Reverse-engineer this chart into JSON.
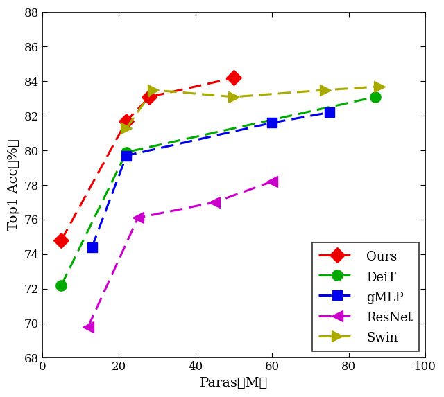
{
  "xlabel": "Paras（M）",
  "ylabel": "Top1 Acc（%）",
  "xlim": [
    0,
    100
  ],
  "ylim": [
    68,
    88
  ],
  "xticks": [
    0,
    20,
    40,
    60,
    80,
    100
  ],
  "yticks": [
    68,
    70,
    72,
    74,
    76,
    78,
    80,
    82,
    84,
    86,
    88
  ],
  "series": [
    {
      "label": "Ours",
      "x": [
        5,
        22,
        28,
        50
      ],
      "y": [
        74.8,
        81.7,
        83.1,
        84.2
      ],
      "color": "#EE0000",
      "linestyle": "--",
      "marker": "D",
      "markersize": 11,
      "linewidth": 2.2
    },
    {
      "label": "DeiT",
      "x": [
        5,
        22,
        87
      ],
      "y": [
        72.2,
        79.9,
        83.1
      ],
      "color": "#00AA00",
      "linestyle": "--",
      "marker": "o",
      "markersize": 11,
      "linewidth": 2.2
    },
    {
      "label": "gMLP",
      "x": [
        13,
        22,
        60,
        75
      ],
      "y": [
        74.4,
        79.7,
        81.6,
        82.2
      ],
      "color": "#0000EE",
      "linestyle": "--",
      "marker": "s",
      "markersize": 10,
      "linewidth": 2.2
    },
    {
      "label": "ResNet",
      "x": [
        12,
        25,
        45,
        60
      ],
      "y": [
        69.8,
        76.1,
        77.0,
        78.2
      ],
      "color": "#CC00CC",
      "linestyle": "--",
      "marker": "<",
      "markersize": 12,
      "linewidth": 2.2
    },
    {
      "label": "Swin",
      "x": [
        22,
        29,
        50,
        74,
        88
      ],
      "y": [
        81.3,
        83.5,
        83.1,
        83.5,
        83.7
      ],
      "color": "#AAAA00",
      "linestyle": "--",
      "marker": ">",
      "markersize": 11,
      "linewidth": 2.2
    }
  ]
}
